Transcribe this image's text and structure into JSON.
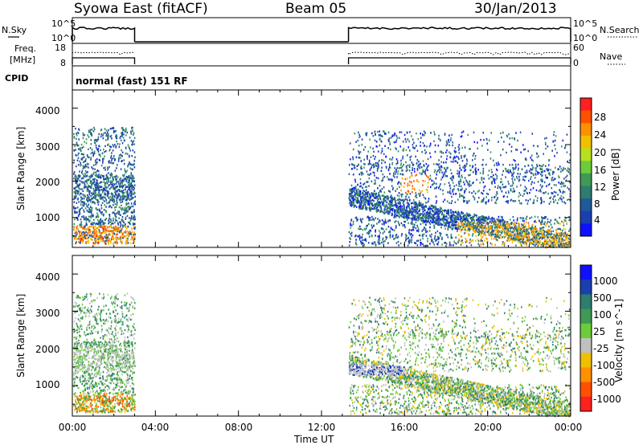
{
  "header": {
    "left_title": "Syowa East (fitACF)",
    "center_title": "Beam 05",
    "right_title": "30/Jan/2013"
  },
  "sky_panel": {
    "left_label": "N.Sky",
    "right_label": "N.Search",
    "left_ticks": [
      "10^5",
      "10^0"
    ],
    "right_ticks": [
      "10^5",
      "10^0"
    ]
  },
  "freq_panel": {
    "left_label_line1": "Freq.",
    "left_label_line2": "[MHz]",
    "right_label": "Nave",
    "left_ticks": [
      "18",
      "8"
    ],
    "right_ticks": [
      "60",
      "0"
    ]
  },
  "cpid": {
    "label": "CPID",
    "mode_text": "normal (fast) 151 RF"
  },
  "time_axis": {
    "label": "Time UT",
    "ticks": [
      "00:00",
      "04:00",
      "08:00",
      "12:00",
      "16:00",
      "20:00",
      "00:00"
    ]
  },
  "chart_data": [
    {
      "type": "heatmap",
      "title": "",
      "xlabel": "Time UT",
      "ylabel": "Slant Range [km]",
      "y_ticks": [
        "1000",
        "2000",
        "3000",
        "4000"
      ],
      "ylim": [
        180,
        4500
      ],
      "xlim": [
        0,
        24
      ],
      "data_coverage_hours": [
        [
          0.0,
          3.0
        ],
        [
          13.3,
          24.0
        ]
      ],
      "colorbar": {
        "label": "Power [dB]",
        "tick_labels": [
          "4",
          "8",
          "12",
          "16",
          "20",
          "24",
          "28"
        ],
        "range": [
          0,
          30
        ],
        "colors": [
          "#1010ff",
          "#1a3fb0",
          "#1f5a9a",
          "#2e7d6e",
          "#3e9a55",
          "#6ccc3a",
          "#b8e020",
          "#f0c000",
          "#ff9000",
          "#ff5000",
          "#ff2020"
        ]
      }
    },
    {
      "type": "heatmap",
      "title": "",
      "xlabel": "Time UT",
      "ylabel": "Slant Range [km]",
      "y_ticks": [
        "1000",
        "2000",
        "3000",
        "4000"
      ],
      "ylim": [
        180,
        4500
      ],
      "xlim": [
        0,
        24
      ],
      "data_coverage_hours": [
        [
          0.0,
          3.0
        ],
        [
          13.3,
          24.0
        ]
      ],
      "colorbar": {
        "label": "Velocity [m s^-1]",
        "tick_labels": [
          "1000",
          "500",
          "100",
          "25",
          "-25",
          "-100",
          "-500",
          "-1000"
        ],
        "colors": [
          "#1010ff",
          "#1a3fb0",
          "#2e7d6e",
          "#3e9a55",
          "#6ccc3a",
          "#c0c0c0",
          "#f0c000",
          "#ff9000",
          "#ff5000",
          "#ff2020"
        ]
      }
    }
  ]
}
